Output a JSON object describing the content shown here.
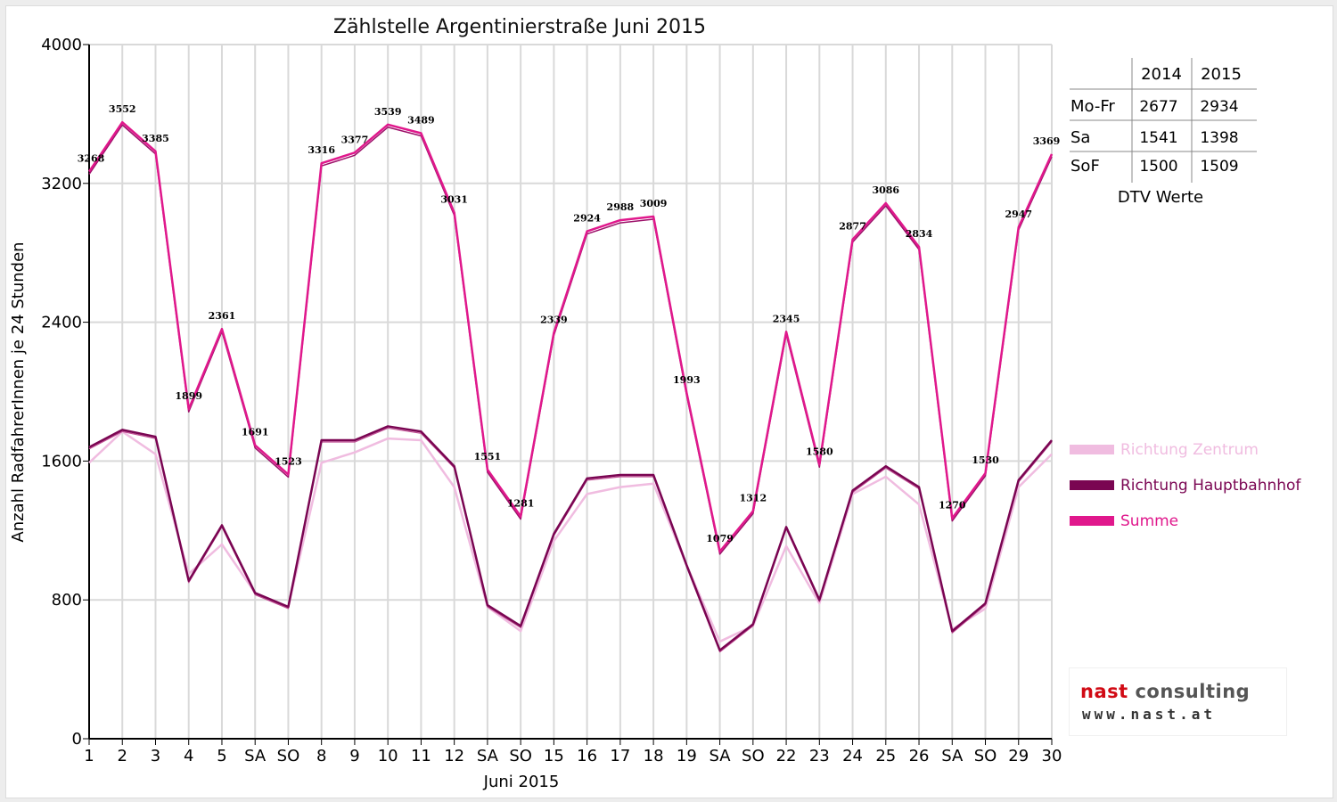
{
  "chart_data": {
    "type": "line",
    "title": "Zählstelle Argentinierstraße Juni 2015",
    "xlabel": "Juni 2015",
    "ylabel": "Anzahl RadfahrerInnen je 24 Stunden",
    "ylim": [
      0,
      4000
    ],
    "yticks": [
      "0",
      "800",
      "1600",
      "2400",
      "3200",
      "4000"
    ],
    "grid": true,
    "legend_position": "right",
    "categories": [
      "1",
      "2",
      "3",
      "4",
      "5",
      "SA",
      "SO",
      "8",
      "9",
      "10",
      "11",
      "12",
      "SA",
      "SO",
      "15",
      "16",
      "17",
      "18",
      "19",
      "SA",
      "SO",
      "22",
      "23",
      "24",
      "25",
      "26",
      "SA",
      "SO",
      "29",
      "30"
    ],
    "red_categories": [
      3,
      6,
      13,
      20,
      27
    ],
    "series": [
      {
        "name": "Richtung Zentrum",
        "color": "#f0bce0",
        "values": [
          1590,
          1770,
          1640,
          950,
          1120,
          840,
          760,
          1590,
          1650,
          1730,
          1720,
          1450,
          760,
          620,
          1140,
          1410,
          1450,
          1470,
          1000,
          560,
          650,
          1110,
          780,
          1410,
          1510,
          1350,
          630,
          750,
          1450,
          1640
        ]
      },
      {
        "name": "Richtung Hauptbahnhof",
        "color": "#7a0552",
        "values": [
          1680,
          1780,
          1740,
          910,
          1230,
          840,
          760,
          1720,
          1720,
          1800,
          1770,
          1570,
          770,
          650,
          1180,
          1500,
          1520,
          1520,
          1000,
          510,
          660,
          1220,
          800,
          1430,
          1570,
          1450,
          620,
          780,
          1490,
          1720
        ]
      },
      {
        "name": "Summe",
        "color": "#e0188c",
        "values": [
          3268,
          3552,
          3385,
          1899,
          2361,
          1691,
          1523,
          3316,
          3377,
          3539,
          3489,
          3031,
          1551,
          1281,
          2339,
          2924,
          2988,
          3009,
          1993,
          1079,
          1312,
          2345,
          1580,
          2877,
          3086,
          2834,
          1270,
          1530,
          2947,
          3369
        ]
      }
    ],
    "data_labels": [
      "3268",
      "3552",
      "3385",
      "1899",
      "2361",
      "1691",
      "1523",
      "3316",
      "3377",
      "3539",
      "3489",
      "3031",
      "1551",
      "1281",
      "2339",
      "2924",
      "2988",
      "3009",
      "1993",
      "1079",
      "1312",
      "2345",
      "1580",
      "2877",
      "3086",
      "2834",
      "1270",
      "1530",
      "2947",
      "3369"
    ]
  },
  "dtv_table": {
    "caption": "DTV Werte",
    "years": [
      "2014",
      "2015"
    ],
    "rows": [
      {
        "label": "Mo-Fr",
        "v2014": "2677",
        "v2015": "2934"
      },
      {
        "label": "Sa",
        "v2014": "1541",
        "v2015": "1398"
      },
      {
        "label": "SoF",
        "v2014": "1500",
        "v2015": "1509"
      }
    ]
  },
  "logo": {
    "brand_part1": "nast",
    "brand_part2": " consulting",
    "website": "www.nast.at"
  }
}
